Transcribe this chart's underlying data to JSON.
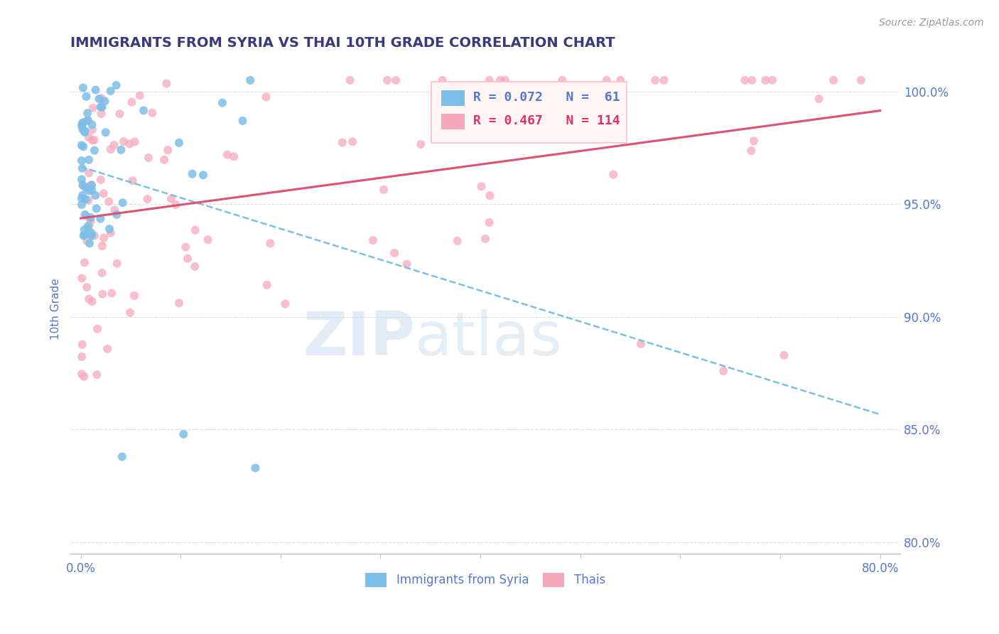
{
  "title": "IMMIGRANTS FROM SYRIA VS THAI 10TH GRADE CORRELATION CHART",
  "source_text": "Source: ZipAtlas.com",
  "ylabel": "10th Grade",
  "xlim": [
    -0.01,
    0.82
  ],
  "ylim": [
    0.795,
    1.012
  ],
  "yticks": [
    0.8,
    0.85,
    0.9,
    0.95,
    1.0
  ],
  "ytick_labels": [
    "80.0%",
    "85.0%",
    "90.0%",
    "95.0%",
    "100.0%"
  ],
  "xticks": [
    0.0,
    0.1,
    0.2,
    0.3,
    0.4,
    0.5,
    0.6,
    0.7,
    0.8
  ],
  "xtick_labels": [
    "0.0%",
    "",
    "",
    "",
    "",
    "",
    "",
    "",
    "80.0%"
  ],
  "legend_R1": "R = 0.072",
  "legend_N1": "N =  61",
  "legend_R2": "R = 0.467",
  "legend_N2": "N = 114",
  "color_syria": "#7bbfe8",
  "color_thais": "#f5a8bc",
  "color_title": "#3a3a7a",
  "color_axis": "#5577cc",
  "trendline_syria_color": "#7bbfe8",
  "trendline_thais_color": "#e05070",
  "watermark_zip": "ZIP",
  "watermark_atlas": "atlas"
}
